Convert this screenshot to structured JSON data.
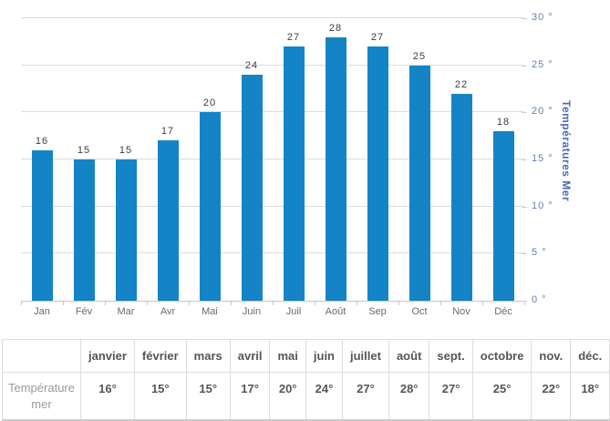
{
  "chart_data": {
    "type": "bar",
    "categories": [
      "Jan",
      "Fév",
      "Mar",
      "Avr",
      "Mai",
      "Juin",
      "Juil",
      "Août",
      "Sep",
      "Oct",
      "Nov",
      "Déc"
    ],
    "values": [
      16,
      15,
      15,
      17,
      20,
      24,
      27,
      28,
      27,
      25,
      22,
      18
    ],
    "title": "",
    "xlabel": "",
    "ylabel": "Températures Mer",
    "ylim": [
      0,
      30
    ],
    "yticks": [
      0,
      5,
      10,
      15,
      20,
      25,
      30
    ],
    "ytick_suffix": " °",
    "grid": true,
    "legend": "none",
    "bar_color": "#1484c6",
    "ytick_color": "#667fae",
    "ylabel_color": "#4a6cb3"
  },
  "table": {
    "row_header": "Température mer",
    "columns": [
      "janvier",
      "février",
      "mars",
      "avril",
      "mai",
      "juin",
      "juillet",
      "août",
      "sept.",
      "octobre",
      "nov.",
      "déc."
    ],
    "values": [
      "16°",
      "15°",
      "15°",
      "17°",
      "20°",
      "24°",
      "27°",
      "28°",
      "27°",
      "25°",
      "22°",
      "18°"
    ]
  }
}
